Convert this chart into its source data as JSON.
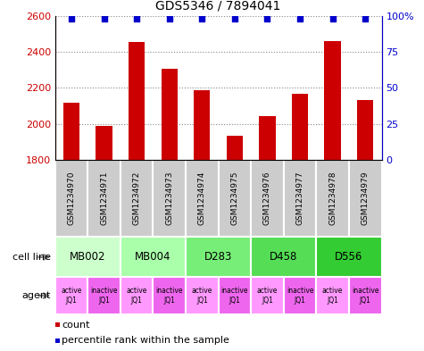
{
  "title": "GDS5346 / 7894041",
  "samples": [
    "GSM1234970",
    "GSM1234971",
    "GSM1234972",
    "GSM1234973",
    "GSM1234974",
    "GSM1234975",
    "GSM1234976",
    "GSM1234977",
    "GSM1234978",
    "GSM1234979"
  ],
  "counts": [
    2115,
    1990,
    2455,
    2305,
    2185,
    1935,
    2040,
    2165,
    2460,
    2130
  ],
  "percentiles": [
    98,
    98,
    98,
    98,
    98,
    98,
    98,
    98,
    98,
    98
  ],
  "ylim_left": [
    1800,
    2600
  ],
  "ylim_right": [
    0,
    100
  ],
  "yticks_left": [
    1800,
    2000,
    2200,
    2400,
    2600
  ],
  "yticks_right": [
    0,
    25,
    50,
    75,
    100
  ],
  "bar_color": "#cc0000",
  "dot_color": "#0000cc",
  "cell_lines": [
    {
      "label": "MB002",
      "span": [
        0,
        2
      ],
      "color": "#ccffcc"
    },
    {
      "label": "MB004",
      "span": [
        2,
        4
      ],
      "color": "#aaffaa"
    },
    {
      "label": "D283",
      "span": [
        4,
        6
      ],
      "color": "#77ee77"
    },
    {
      "label": "D458",
      "span": [
        6,
        8
      ],
      "color": "#55dd55"
    },
    {
      "label": "D556",
      "span": [
        8,
        10
      ],
      "color": "#33cc33"
    }
  ],
  "agents": [
    {
      "label": "active\nJQ1",
      "color": "#ff99ff"
    },
    {
      "label": "inactive\nJQ1",
      "color": "#ee66ee"
    },
    {
      "label": "active\nJQ1",
      "color": "#ff99ff"
    },
    {
      "label": "inactive\nJQ1",
      "color": "#ee66ee"
    },
    {
      "label": "active\nJQ1",
      "color": "#ff99ff"
    },
    {
      "label": "inactive\nJQ1",
      "color": "#ee66ee"
    },
    {
      "label": "active\nJQ1",
      "color": "#ff99ff"
    },
    {
      "label": "inactive\nJQ1",
      "color": "#ee66ee"
    },
    {
      "label": "active\nJQ1",
      "color": "#ff99ff"
    },
    {
      "label": "inactive\nJQ1",
      "color": "#ee66ee"
    }
  ],
  "left_label_color": "#cc0000",
  "right_label_color": "#0000cc",
  "grid_color": "#888888",
  "bg_color": "#ffffff",
  "sample_bg_color": "#cccccc",
  "fig_width": 4.75,
  "fig_height": 3.93,
  "dpi": 100
}
